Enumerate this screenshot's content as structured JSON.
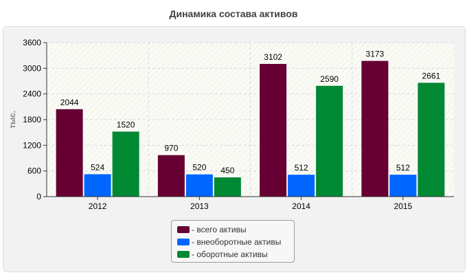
{
  "chart_data": {
    "type": "bar",
    "title": "Динамика состава активов",
    "ylabel": "тыс.",
    "xlabel": "",
    "categories": [
      "2012",
      "2013",
      "2014",
      "2015"
    ],
    "ylim": [
      0,
      3600
    ],
    "yticks": [
      0,
      600,
      1200,
      1800,
      2400,
      3000,
      3600
    ],
    "grid": true,
    "legend_placement": "bottom",
    "series": [
      {
        "name": "- всего активы",
        "color": "#660033",
        "values": [
          2044,
          970,
          3102,
          3173
        ]
      },
      {
        "name": "- внеоборотные активы",
        "color": "#0066ff",
        "values": [
          524,
          520,
          512,
          512
        ]
      },
      {
        "name": "- оборотные активы",
        "color": "#008833",
        "values": [
          1520,
          450,
          2590,
          2661
        ]
      }
    ]
  }
}
